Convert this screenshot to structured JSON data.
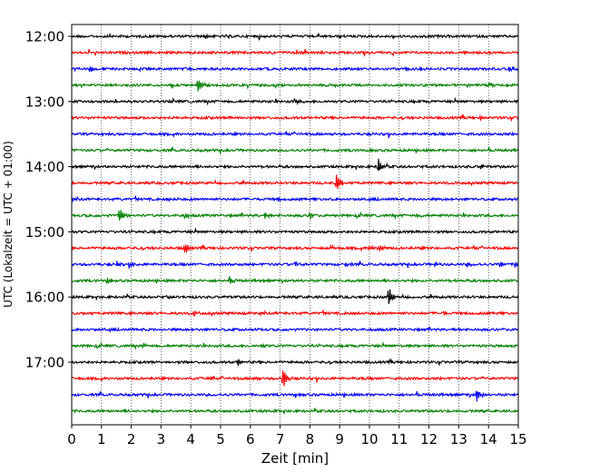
{
  "chart_data": {
    "type": "line",
    "title": "",
    "xlabel": "Zeit  [min]",
    "ylabel": "UTC (Lokalzeit = UTC + 01:00)",
    "xlim": [
      0,
      15
    ],
    "x_ticks": [
      0,
      1,
      2,
      3,
      4,
      5,
      6,
      7,
      8,
      9,
      10,
      11,
      12,
      13,
      14,
      15
    ],
    "y_tick_labels": [
      "12:00",
      "13:00",
      "14:00",
      "15:00",
      "16:00",
      "17:00"
    ],
    "y_tick_rows": [
      0,
      4,
      8,
      12,
      16,
      20
    ],
    "grid": {
      "x": true,
      "y": false,
      "style": "dotted"
    },
    "line_colors": [
      "#000000",
      "#ff0000",
      "#0000ff",
      "#008000"
    ],
    "rows": [
      {
        "start": "12:00",
        "color": "#000000",
        "events": [
          {
            "t": 4.5,
            "amp": 0.3
          },
          {
            "t": 9.0,
            "amp": 0.25
          }
        ]
      },
      {
        "start": "12:15",
        "color": "#ff0000",
        "events": []
      },
      {
        "start": "12:30",
        "color": "#0000ff",
        "events": [
          {
            "t": 0.6,
            "amp": 0.45
          },
          {
            "t": 14.7,
            "amp": 0.2
          }
        ]
      },
      {
        "start": "12:45",
        "color": "#008000",
        "events": [
          {
            "t": 4.25,
            "amp": 1.0
          },
          {
            "t": 14.0,
            "amp": 0.3
          }
        ]
      },
      {
        "start": "13:00",
        "color": "#000000",
        "events": [
          {
            "t": 7.5,
            "amp": 0.35
          }
        ]
      },
      {
        "start": "13:15",
        "color": "#ff0000",
        "events": [
          {
            "t": 13.75,
            "amp": 0.3
          }
        ]
      },
      {
        "start": "13:30",
        "color": "#0000ff",
        "events": []
      },
      {
        "start": "13:45",
        "color": "#008000",
        "events": []
      },
      {
        "start": "14:00",
        "color": "#000000",
        "events": [
          {
            "t": 10.3,
            "amp": 0.9
          },
          {
            "t": 13.75,
            "amp": 0.25
          }
        ]
      },
      {
        "start": "14:15",
        "color": "#ff0000",
        "events": [
          {
            "t": 8.9,
            "amp": 1.1
          }
        ]
      },
      {
        "start": "14:30",
        "color": "#0000ff",
        "events": [
          {
            "t": 3.3,
            "amp": 0.25
          },
          {
            "t": 6.9,
            "amp": 0.25
          }
        ]
      },
      {
        "start": "14:45",
        "color": "#008000",
        "events": [
          {
            "t": 1.6,
            "amp": 0.9
          },
          {
            "t": 3.8,
            "amp": 0.3
          },
          {
            "t": 6.5,
            "amp": 0.35
          },
          {
            "t": 8.0,
            "amp": 0.4
          },
          {
            "t": 11.6,
            "amp": 0.3
          }
        ]
      },
      {
        "start": "15:00",
        "color": "#000000",
        "events": []
      },
      {
        "start": "15:15",
        "color": "#ff0000",
        "events": [
          {
            "t": 3.8,
            "amp": 0.7
          },
          {
            "t": 8.7,
            "amp": 0.25
          },
          {
            "t": 10.0,
            "amp": 0.35
          },
          {
            "t": 10.35,
            "amp": 0.3
          }
        ]
      },
      {
        "start": "15:30",
        "color": "#0000ff",
        "events": [
          {
            "t": 1.5,
            "amp": 0.35
          },
          {
            "t": 2.0,
            "amp": 0.3
          },
          {
            "t": 7.5,
            "amp": 0.3
          },
          {
            "t": 9.2,
            "amp": 0.3
          },
          {
            "t": 12.2,
            "amp": 0.3
          },
          {
            "t": 13.3,
            "amp": 0.3
          },
          {
            "t": 14.4,
            "amp": 0.35
          },
          {
            "t": 14.9,
            "amp": 0.3
          }
        ]
      },
      {
        "start": "15:45",
        "color": "#008000",
        "events": [
          {
            "t": 1.2,
            "amp": 0.3
          },
          {
            "t": 5.3,
            "amp": 0.3
          },
          {
            "t": 7.5,
            "amp": 0.25
          }
        ]
      },
      {
        "start": "16:00",
        "color": "#000000",
        "events": [
          {
            "t": 10.65,
            "amp": 1.1
          },
          {
            "t": 3.2,
            "amp": 0.25
          }
        ]
      },
      {
        "start": "16:15",
        "color": "#ff0000",
        "events": [
          {
            "t": 4.1,
            "amp": 0.3
          },
          {
            "t": 12.5,
            "amp": 0.2
          }
        ]
      },
      {
        "start": "16:30",
        "color": "#0000ff",
        "events": []
      },
      {
        "start": "16:45",
        "color": "#008000",
        "events": [
          {
            "t": 6.4,
            "amp": 0.3
          },
          {
            "t": 2.4,
            "amp": 0.2
          }
        ]
      },
      {
        "start": "17:00",
        "color": "#000000",
        "events": [
          {
            "t": 5.6,
            "amp": 0.4
          },
          {
            "t": 2.9,
            "amp": 0.25
          }
        ]
      },
      {
        "start": "17:15",
        "color": "#ff0000",
        "events": [
          {
            "t": 7.1,
            "amp": 1.3
          },
          {
            "t": 4.7,
            "amp": 0.3
          },
          {
            "t": 6.1,
            "amp": 0.25
          }
        ]
      },
      {
        "start": "17:30",
        "color": "#0000ff",
        "events": [
          {
            "t": 13.6,
            "amp": 0.8
          },
          {
            "t": 7.5,
            "amp": 0.3
          }
        ]
      },
      {
        "start": "17:45",
        "color": "#008000",
        "events": []
      }
    ]
  }
}
